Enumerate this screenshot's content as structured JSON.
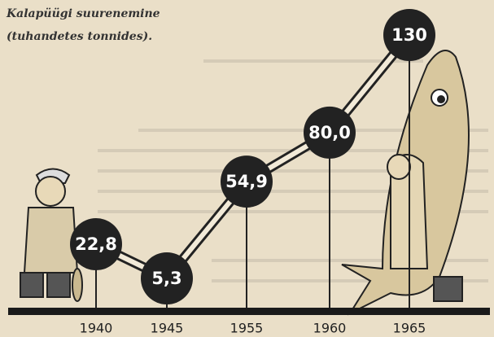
{
  "chart_data": {
    "type": "line",
    "title_lines": [
      "Kalapüügi suurenemine",
      "(tuhandetes tonnides)."
    ],
    "categories": [
      "1940",
      "1945",
      "1955",
      "1960",
      "1965"
    ],
    "values": [
      22.8,
      5.3,
      54.9,
      80.0,
      130
    ],
    "value_labels": [
      "22,8",
      "5,3",
      "54,9",
      "80,0",
      "130"
    ],
    "color": "#222222"
  }
}
